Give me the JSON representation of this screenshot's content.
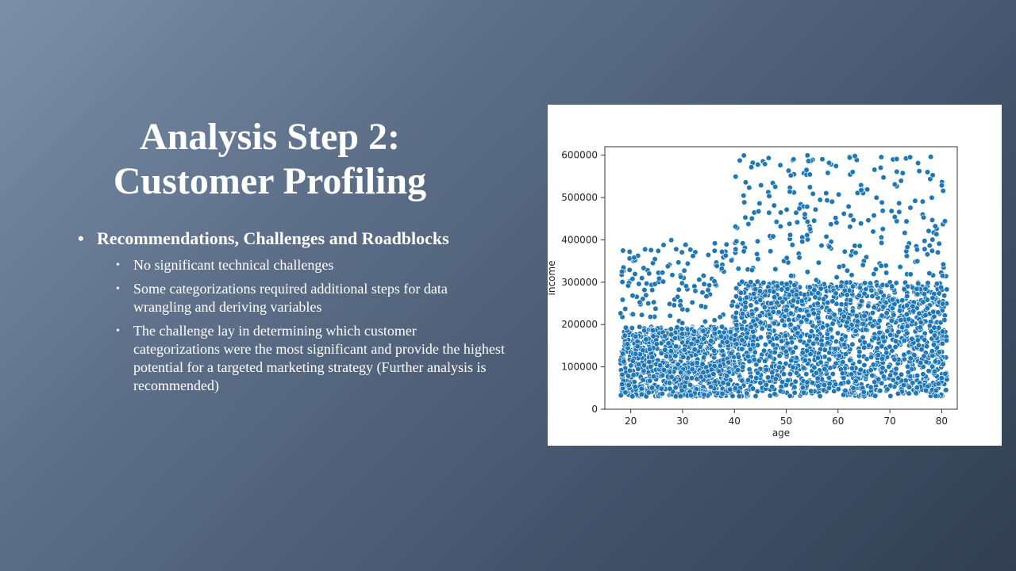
{
  "slide": {
    "title_line1": "Analysis Step 2:",
    "title_line2": "Customer Profiling",
    "main_bullet": "Recommendations, Challenges and Roadblocks",
    "sub_bullets": [
      "No significant technical challenges",
      "Some categorizations required additional steps for data wrangling and deriving variables",
      "The challenge lay in determining which customer categorizations were the most significant and provide the highest potential for a targeted marketing strategy (Further analysis is recommended)"
    ]
  },
  "chart_data": {
    "type": "scatter",
    "xlabel": "age",
    "ylabel": "income",
    "xlim": [
      15,
      83
    ],
    "ylim": [
      0,
      620000
    ],
    "x_ticks": [
      20,
      30,
      40,
      50,
      60,
      70,
      80
    ],
    "y_ticks": [
      0,
      100000,
      200000,
      300000,
      400000,
      500000,
      600000
    ],
    "point_color": "#1f77b4",
    "regions": [
      {
        "age_range": [
          18,
          40
        ],
        "dense_income_range": [
          30000,
          195000
        ],
        "sparse_income_range": [
          200000,
          400000
        ]
      },
      {
        "age_range": [
          40,
          81
        ],
        "dense_income_range": [
          30000,
          300000
        ],
        "sparse_income_range": [
          300000,
          600000
        ]
      }
    ]
  }
}
